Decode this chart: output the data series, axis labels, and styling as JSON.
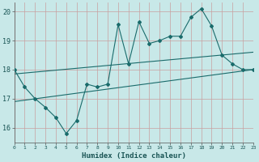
{
  "xlabel": "Humidex (Indice chaleur)",
  "bg_color": "#c8e8e8",
  "grid_color": "#b0d0d0",
  "line_color": "#1a6b6b",
  "xlim": [
    0,
    23
  ],
  "ylim": [
    15.5,
    20.3
  ],
  "yticks": [
    16,
    17,
    18,
    19,
    20
  ],
  "xticks": [
    0,
    1,
    2,
    3,
    4,
    5,
    6,
    7,
    8,
    9,
    10,
    11,
    12,
    13,
    14,
    15,
    16,
    17,
    18,
    19,
    20,
    21,
    22,
    23
  ],
  "jagged_x": [
    0,
    1,
    2,
    3,
    4,
    5,
    6,
    7,
    8,
    9,
    10,
    11,
    12,
    13,
    14,
    15,
    16,
    17,
    18,
    19,
    20,
    21,
    22,
    23
  ],
  "jagged_y": [
    18.0,
    17.4,
    17.0,
    16.7,
    16.35,
    15.8,
    16.25,
    17.5,
    17.4,
    17.5,
    19.55,
    18.2,
    19.65,
    18.9,
    19.0,
    19.15,
    19.15,
    19.8,
    20.1,
    19.5,
    18.5,
    18.2,
    18.0,
    18.0
  ],
  "upper_line_x": [
    0,
    23
  ],
  "upper_line_y": [
    17.85,
    18.6
  ],
  "lower_line_x": [
    0,
    23
  ],
  "lower_line_y": [
    16.9,
    18.0
  ]
}
